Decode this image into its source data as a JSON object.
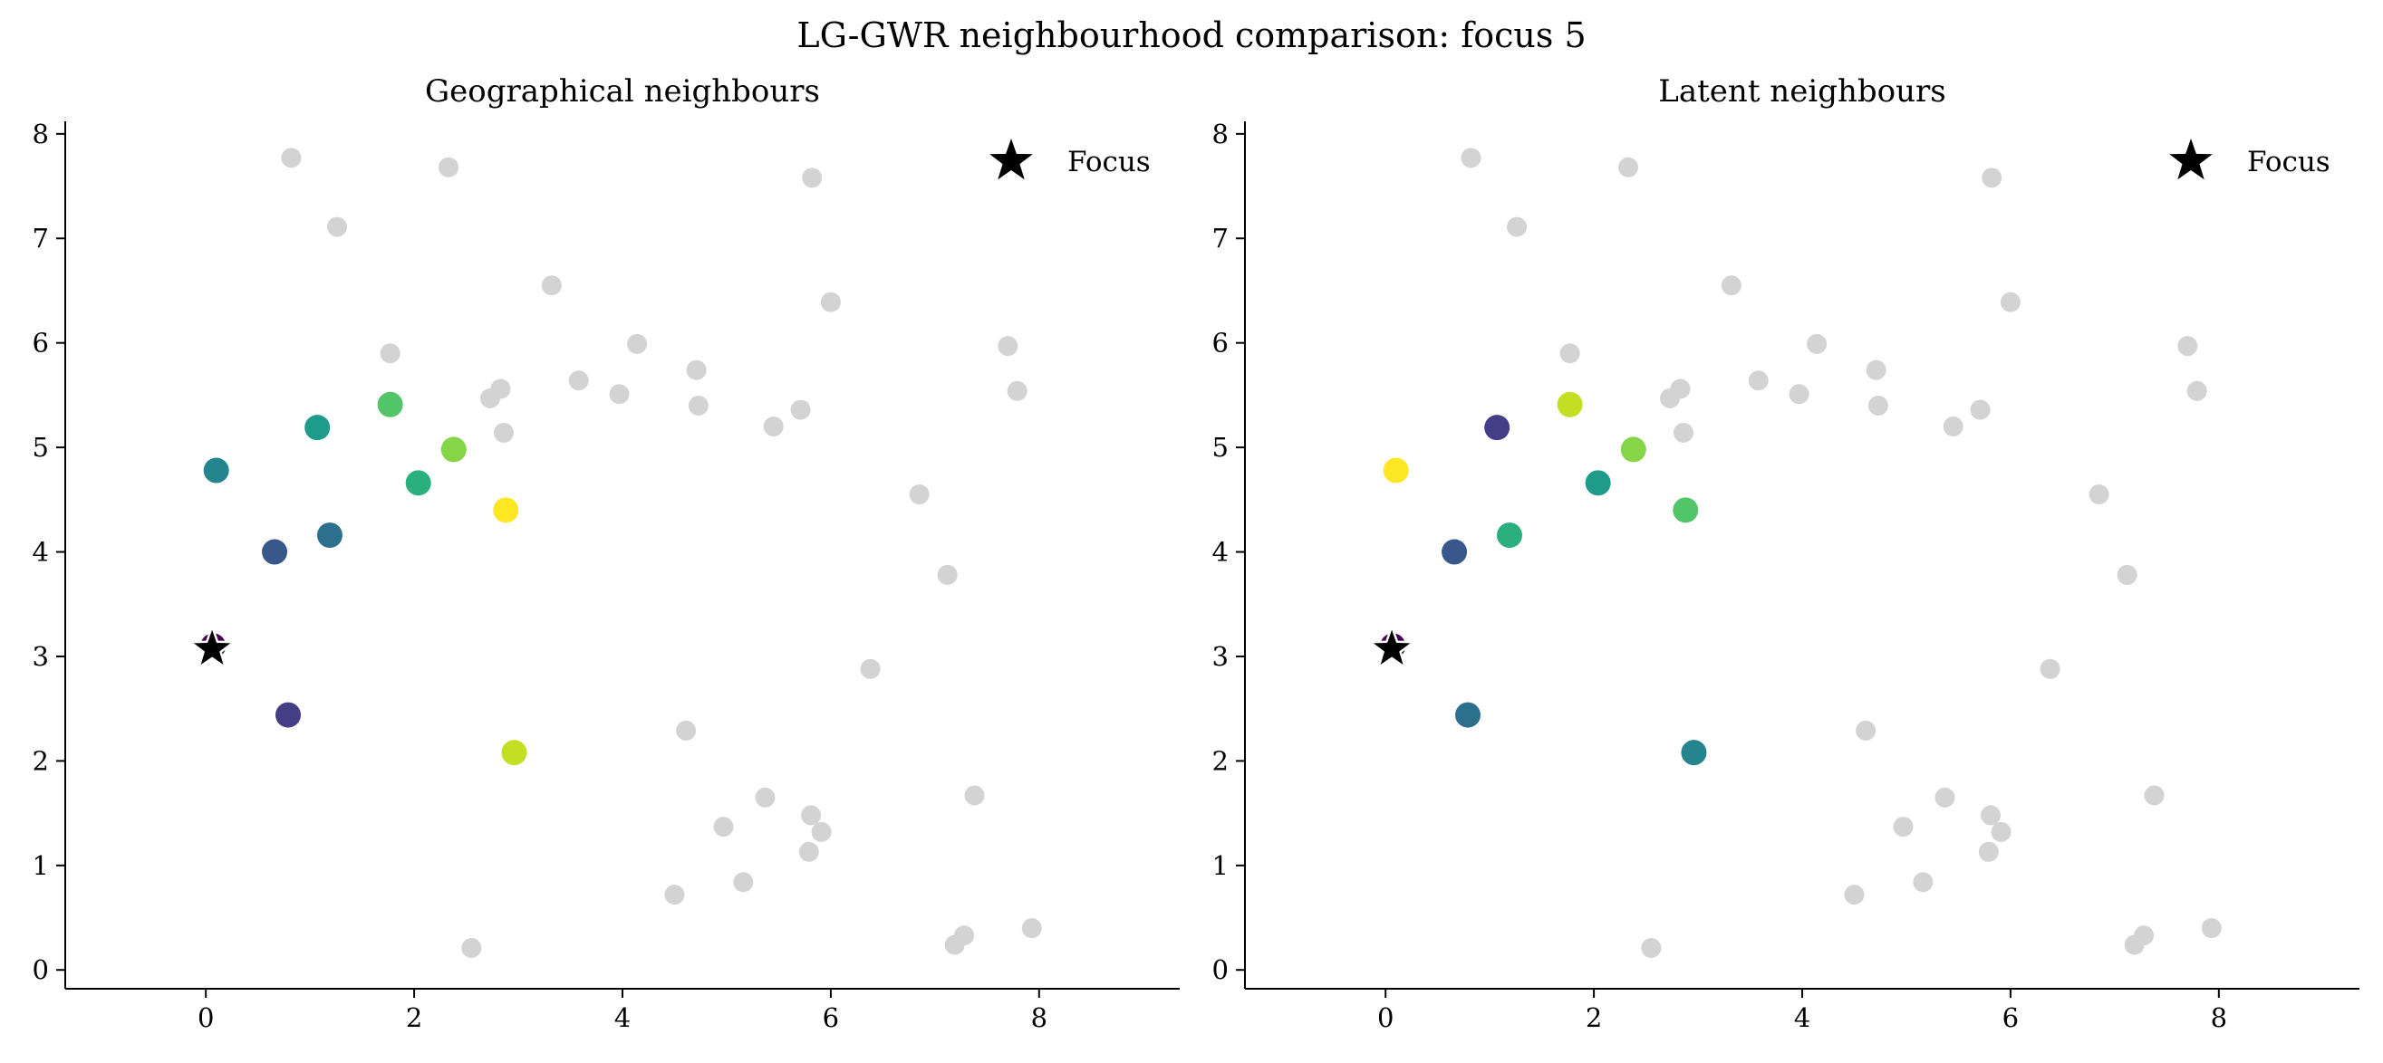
{
  "figure": {
    "suptitle": "LG-GWR neighbourhood comparison: focus 5"
  },
  "chart_data": [
    {
      "type": "scatter",
      "title": "Geographical neighbours",
      "xlabel": "",
      "ylabel": "",
      "xlim": [
        -1.35,
        9.35
      ],
      "ylim": [
        -0.18,
        8.12
      ],
      "xticks": [
        0,
        2,
        4,
        6,
        8
      ],
      "yticks": [
        0,
        1,
        2,
        3,
        4,
        5,
        6,
        7,
        8
      ],
      "legend": {
        "label": "Focus",
        "position": "top-right"
      },
      "focus": {
        "x": 0.06,
        "y": 3.07
      },
      "background_points": [
        [
          0.82,
          7.77
        ],
        [
          2.33,
          7.68
        ],
        [
          1.26,
          7.11
        ],
        [
          5.82,
          7.58
        ],
        [
          3.32,
          6.55
        ],
        [
          6.0,
          6.39
        ],
        [
          1.77,
          5.9
        ],
        [
          4.14,
          5.99
        ],
        [
          4.71,
          5.74
        ],
        [
          7.7,
          5.97
        ],
        [
          7.79,
          5.54
        ],
        [
          3.58,
          5.64
        ],
        [
          3.97,
          5.51
        ],
        [
          2.73,
          5.47
        ],
        [
          2.83,
          5.56
        ],
        [
          4.73,
          5.4
        ],
        [
          5.71,
          5.36
        ],
        [
          5.45,
          5.2
        ],
        [
          2.86,
          5.14
        ],
        [
          6.85,
          4.55
        ],
        [
          7.12,
          3.78
        ],
        [
          6.38,
          2.88
        ],
        [
          4.61,
          2.29
        ],
        [
          5.37,
          1.65
        ],
        [
          4.97,
          1.37
        ],
        [
          5.81,
          1.48
        ],
        [
          5.91,
          1.32
        ],
        [
          5.79,
          1.13
        ],
        [
          7.38,
          1.67
        ],
        [
          5.16,
          0.84
        ],
        [
          4.5,
          0.72
        ],
        [
          2.55,
          0.21
        ],
        [
          7.28,
          0.33
        ],
        [
          7.19,
          0.24
        ],
        [
          7.93,
          0.4
        ]
      ],
      "neighbour_points": [
        {
          "x": 0.07,
          "y": 3.1,
          "color": "#440154"
        },
        {
          "x": 0.79,
          "y": 2.44,
          "color": "#433e85"
        },
        {
          "x": 0.66,
          "y": 4.0,
          "color": "#38588c"
        },
        {
          "x": 1.19,
          "y": 4.16,
          "color": "#2d708e"
        },
        {
          "x": 0.1,
          "y": 4.78,
          "color": "#25858e"
        },
        {
          "x": 1.07,
          "y": 5.19,
          "color": "#1e9b8a"
        },
        {
          "x": 2.04,
          "y": 4.66,
          "color": "#2ab07f"
        },
        {
          "x": 1.77,
          "y": 5.41,
          "color": "#52c569"
        },
        {
          "x": 2.38,
          "y": 4.98,
          "color": "#86d549"
        },
        {
          "x": 2.96,
          "y": 2.08,
          "color": "#c2df23"
        },
        {
          "x": 2.88,
          "y": 4.4,
          "color": "#fde725"
        }
      ]
    },
    {
      "type": "scatter",
      "title": "Latent neighbours",
      "xlabel": "",
      "ylabel": "",
      "xlim": [
        -1.35,
        9.35
      ],
      "ylim": [
        -0.18,
        8.12
      ],
      "xticks": [
        0,
        2,
        4,
        6,
        8
      ],
      "yticks": [
        0,
        1,
        2,
        3,
        4,
        5,
        6,
        7,
        8
      ],
      "legend": {
        "label": "Focus",
        "position": "top-right"
      },
      "focus": {
        "x": 0.06,
        "y": 3.07
      },
      "background_points": [
        [
          0.82,
          7.77
        ],
        [
          2.33,
          7.68
        ],
        [
          1.26,
          7.11
        ],
        [
          5.82,
          7.58
        ],
        [
          3.32,
          6.55
        ],
        [
          6.0,
          6.39
        ],
        [
          1.77,
          5.9
        ],
        [
          4.14,
          5.99
        ],
        [
          4.71,
          5.74
        ],
        [
          7.7,
          5.97
        ],
        [
          7.79,
          5.54
        ],
        [
          3.58,
          5.64
        ],
        [
          3.97,
          5.51
        ],
        [
          2.73,
          5.47
        ],
        [
          2.83,
          5.56
        ],
        [
          4.73,
          5.4
        ],
        [
          5.71,
          5.36
        ],
        [
          5.45,
          5.2
        ],
        [
          2.86,
          5.14
        ],
        [
          6.85,
          4.55
        ],
        [
          7.12,
          3.78
        ],
        [
          6.38,
          2.88
        ],
        [
          4.61,
          2.29
        ],
        [
          5.37,
          1.65
        ],
        [
          4.97,
          1.37
        ],
        [
          5.81,
          1.48
        ],
        [
          5.91,
          1.32
        ],
        [
          5.79,
          1.13
        ],
        [
          7.38,
          1.67
        ],
        [
          5.16,
          0.84
        ],
        [
          4.5,
          0.72
        ],
        [
          2.55,
          0.21
        ],
        [
          7.28,
          0.33
        ],
        [
          7.19,
          0.24
        ],
        [
          7.93,
          0.4
        ]
      ],
      "neighbour_points": [
        {
          "x": 0.07,
          "y": 3.1,
          "color": "#440154"
        },
        {
          "x": 1.07,
          "y": 5.19,
          "color": "#433e85"
        },
        {
          "x": 0.66,
          "y": 4.0,
          "color": "#38588c"
        },
        {
          "x": 0.79,
          "y": 2.44,
          "color": "#2d708e"
        },
        {
          "x": 2.96,
          "y": 2.08,
          "color": "#25858e"
        },
        {
          "x": 2.04,
          "y": 4.66,
          "color": "#1e9b8a"
        },
        {
          "x": 1.19,
          "y": 4.16,
          "color": "#2ab07f"
        },
        {
          "x": 2.88,
          "y": 4.4,
          "color": "#52c569"
        },
        {
          "x": 2.38,
          "y": 4.98,
          "color": "#86d549"
        },
        {
          "x": 1.77,
          "y": 5.41,
          "color": "#c2df23"
        },
        {
          "x": 0.1,
          "y": 4.78,
          "color": "#fde725"
        }
      ]
    }
  ]
}
